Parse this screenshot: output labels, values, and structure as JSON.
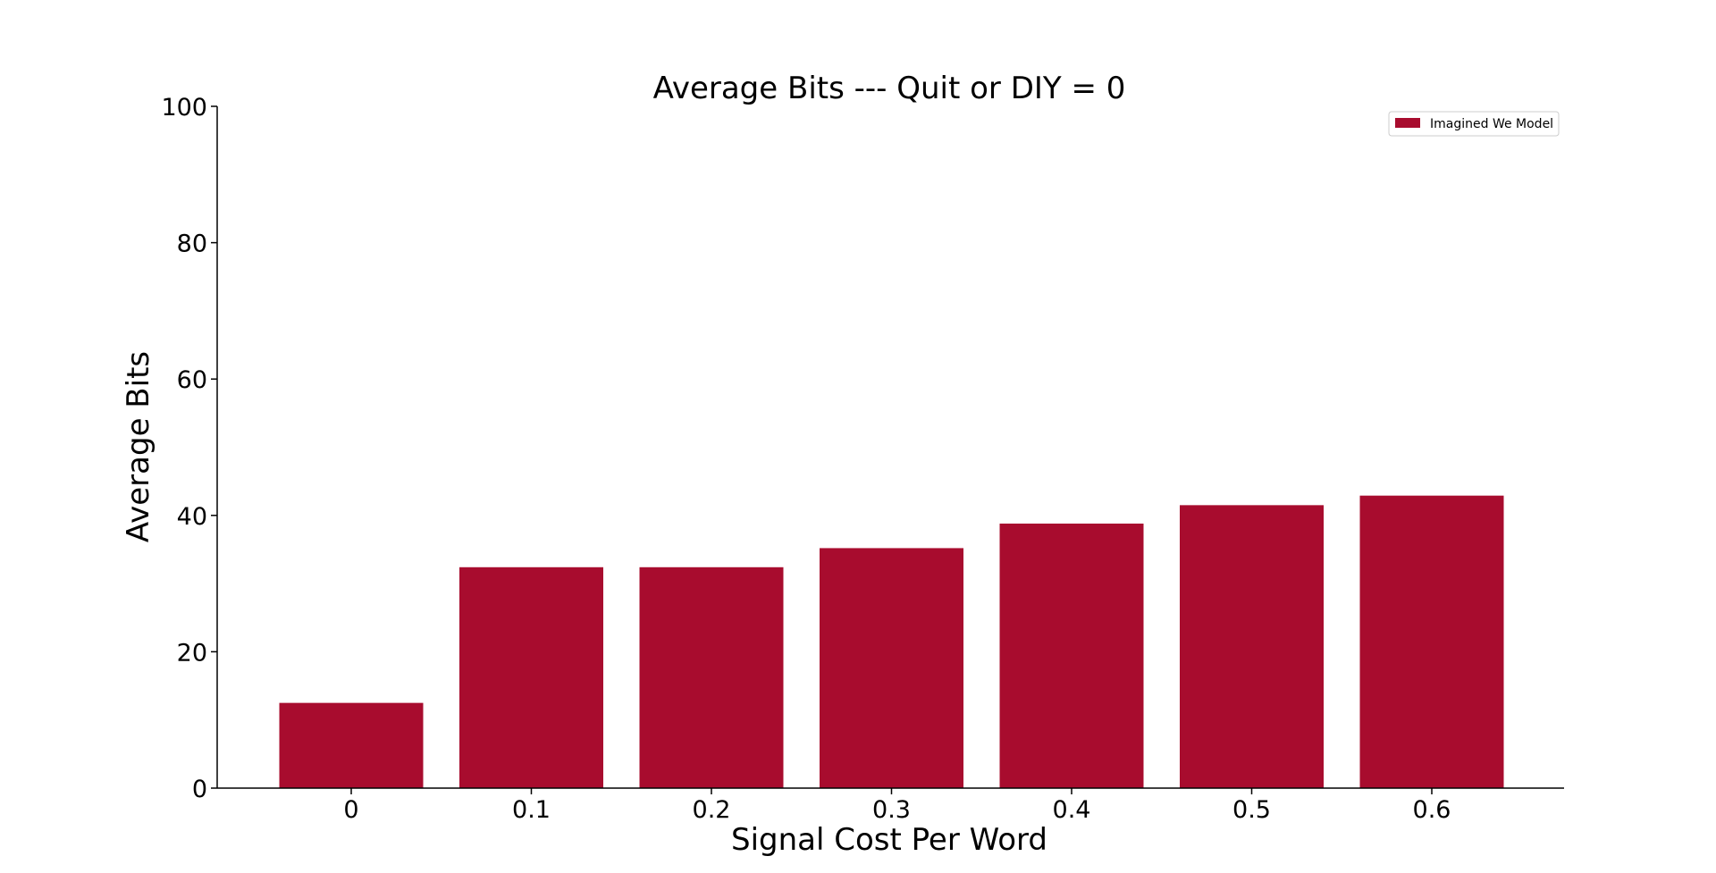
{
  "chart_data": {
    "type": "bar",
    "title": "Average Bits --- Quit or DIY = 0",
    "xlabel": "Signal Cost Per Word",
    "ylabel": "Average Bits",
    "categories": [
      "0",
      "0.1",
      "0.2",
      "0.3",
      "0.4",
      "0.5",
      "0.6"
    ],
    "series": [
      {
        "name": "Imagined We Model",
        "color": "#a80c2e",
        "values": [
          12.5,
          32.4,
          32.4,
          35.2,
          38.8,
          41.5,
          42.9
        ]
      }
    ],
    "ylim": [
      0,
      100
    ],
    "yticks": [
      "0",
      "20",
      "40",
      "60",
      "80",
      "100"
    ],
    "grid": false,
    "legend_position": "top-right"
  }
}
